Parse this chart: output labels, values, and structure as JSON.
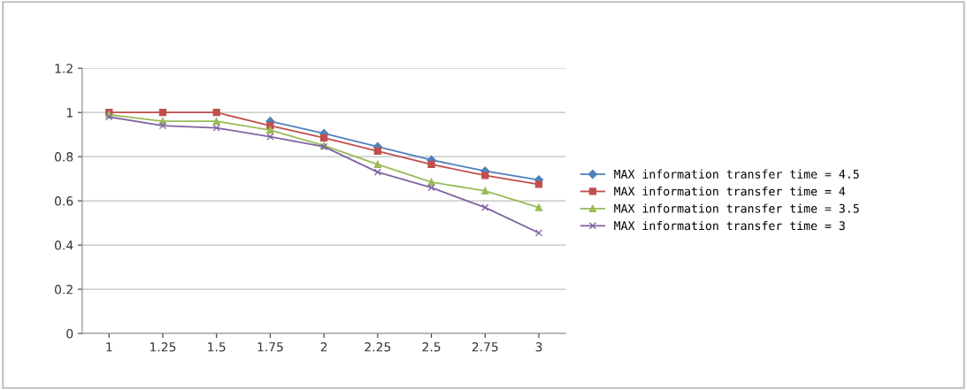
{
  "chart_data": {
    "type": "line",
    "categories": [
      "1",
      "1.25",
      "1.5",
      "1.75",
      "2",
      "2.25",
      "2.5",
      "2.75",
      "3"
    ],
    "series": [
      {
        "name": "MAX information transfer time = 4.5",
        "color": "#4f81bd",
        "marker": "diamond",
        "values": [
          null,
          null,
          null,
          0.96,
          0.905,
          0.845,
          0.785,
          0.735,
          0.695
        ]
      },
      {
        "name": "MAX information transfer time = 4",
        "color": "#c0504d",
        "marker": "square",
        "values": [
          1,
          1,
          1,
          0.94,
          0.885,
          0.825,
          0.765,
          0.715,
          0.675
        ]
      },
      {
        "name": "MAX information transfer time = 3.5",
        "color": "#9bbb59",
        "marker": "triangle",
        "values": [
          0.99,
          0.96,
          0.96,
          0.92,
          0.85,
          0.765,
          0.685,
          0.645,
          0.57
        ]
      },
      {
        "name": "MAX information transfer time = 3",
        "color": "#8064a2",
        "marker": "cross",
        "values": [
          0.98,
          0.94,
          0.93,
          0.89,
          0.845,
          0.73,
          0.66,
          0.57,
          0.455
        ]
      }
    ],
    "ylim": [
      0,
      1.2
    ],
    "yticks": [
      0,
      0.2,
      0.4,
      0.6,
      0.8,
      1,
      1.2
    ],
    "grid": "y",
    "legend": "right"
  }
}
